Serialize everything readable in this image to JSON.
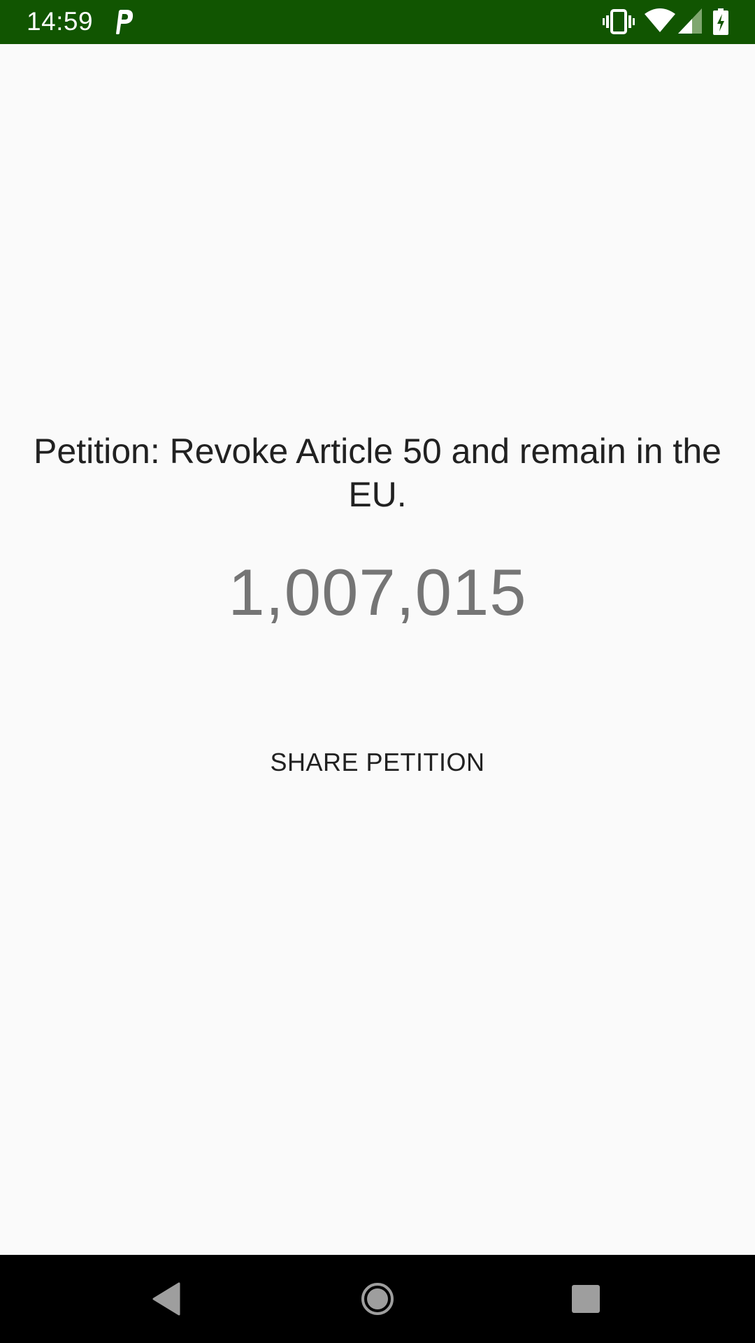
{
  "status_bar": {
    "time": "14:59",
    "background": "#115501",
    "app_icon": "parking-p-icon",
    "icons": [
      "vibrate-icon",
      "wifi-icon",
      "cellular-signal-icon",
      "battery-charging-icon"
    ]
  },
  "petition": {
    "title": "Petition: Revoke Article 50 and remain in the EU.",
    "signature_count": "1,007,015"
  },
  "actions": {
    "share_label": "SHARE PETITION"
  },
  "nav_bar": {
    "buttons": [
      "back-icon",
      "home-icon",
      "recents-icon"
    ]
  }
}
